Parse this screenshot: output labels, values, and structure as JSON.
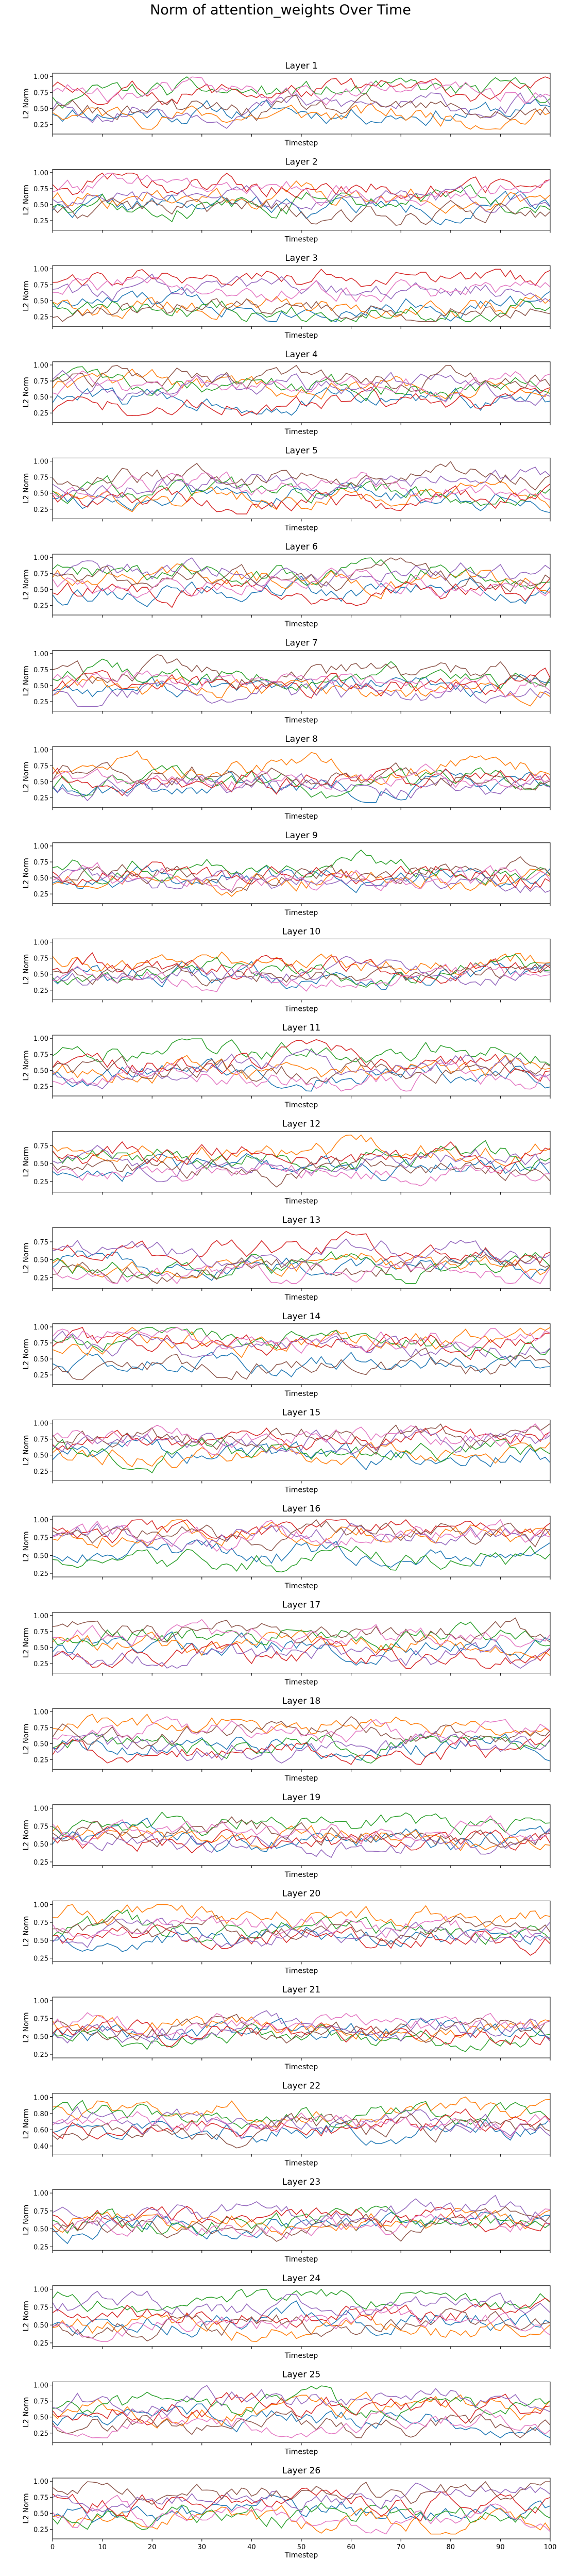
{
  "figure": {
    "title": "Norm of attention_weights Over Time"
  },
  "layout": {
    "common_xlabel": "Timestep",
    "common_ylabel": "L2 Norm",
    "x_ticks": [
      0,
      10,
      20,
      30,
      40,
      50,
      60,
      70,
      80,
      90,
      100
    ],
    "series_colors": [
      "#1f77b4",
      "#ff7f0e",
      "#2ca02c",
      "#d62728",
      "#9467bd",
      "#8c564b",
      "#e377c2"
    ]
  },
  "chart_data": [
    {
      "type": "line",
      "title": "Layer 1",
      "xlabel": "Timestep",
      "ylabel": "L2 Norm",
      "xlim": [
        0,
        100
      ],
      "ylim": [
        0.1,
        1.05
      ],
      "yticks": [
        0.25,
        0.5,
        0.75,
        1.0
      ],
      "seed": 11
    },
    {
      "type": "line",
      "title": "Layer 2",
      "xlabel": "Timestep",
      "ylabel": "L2 Norm",
      "xlim": [
        0,
        100
      ],
      "ylim": [
        0.1,
        1.05
      ],
      "yticks": [
        0.25,
        0.5,
        0.75,
        1.0
      ],
      "seed": 22
    },
    {
      "type": "line",
      "title": "Layer 3",
      "xlabel": "Timestep",
      "ylabel": "L2 Norm",
      "xlim": [
        0,
        100
      ],
      "ylim": [
        0.1,
        1.05
      ],
      "yticks": [
        0.25,
        0.5,
        0.75,
        1.0
      ],
      "seed": 33
    },
    {
      "type": "line",
      "title": "Layer 4",
      "xlabel": "Timestep",
      "ylabel": "L2 Norm",
      "xlim": [
        0,
        100
      ],
      "ylim": [
        0.1,
        1.05
      ],
      "yticks": [
        0.25,
        0.5,
        0.75,
        1.0
      ],
      "seed": 44
    },
    {
      "type": "line",
      "title": "Layer 5",
      "xlabel": "Timestep",
      "ylabel": "L2 Norm",
      "xlim": [
        0,
        100
      ],
      "ylim": [
        0.1,
        1.05
      ],
      "yticks": [
        0.25,
        0.5,
        0.75,
        1.0
      ],
      "seed": 55
    },
    {
      "type": "line",
      "title": "Layer 6",
      "xlabel": "Timestep",
      "ylabel": "L2 Norm",
      "xlim": [
        0,
        100
      ],
      "ylim": [
        0.1,
        1.05
      ],
      "yticks": [
        0.25,
        0.5,
        0.75,
        1.0
      ],
      "seed": 66
    },
    {
      "type": "line",
      "title": "Layer 7",
      "xlabel": "Timestep",
      "ylabel": "L2 Norm",
      "xlim": [
        0,
        100
      ],
      "ylim": [
        0.1,
        1.05
      ],
      "yticks": [
        0.25,
        0.5,
        0.75,
        1.0
      ],
      "seed": 77
    },
    {
      "type": "line",
      "title": "Layer 8",
      "xlabel": "Timestep",
      "ylabel": "L2 Norm",
      "xlim": [
        0,
        100
      ],
      "ylim": [
        0.1,
        1.05
      ],
      "yticks": [
        0.25,
        0.5,
        0.75,
        1.0
      ],
      "seed": 88
    },
    {
      "type": "line",
      "title": "Layer 9",
      "xlabel": "Timestep",
      "ylabel": "L2 Norm",
      "xlim": [
        0,
        100
      ],
      "ylim": [
        0.1,
        1.05
      ],
      "yticks": [
        0.25,
        0.5,
        0.75,
        1.0
      ],
      "seed": 99
    },
    {
      "type": "line",
      "title": "Layer 10",
      "xlabel": "Timestep",
      "ylabel": "L2 Norm",
      "xlim": [
        0,
        100
      ],
      "ylim": [
        0.1,
        1.05
      ],
      "yticks": [
        0.25,
        0.5,
        0.75,
        1.0
      ],
      "seed": 110
    },
    {
      "type": "line",
      "title": "Layer 11",
      "xlabel": "Timestep",
      "ylabel": "L2 Norm",
      "xlim": [
        0,
        100
      ],
      "ylim": [
        0.1,
        1.05
      ],
      "yticks": [
        0.25,
        0.5,
        0.75,
        1.0
      ],
      "seed": 121
    },
    {
      "type": "line",
      "title": "Layer 12",
      "xlabel": "Timestep",
      "ylabel": "L2 Norm",
      "xlim": [
        0,
        100
      ],
      "ylim": [
        0.1,
        0.95
      ],
      "yticks": [
        0.25,
        0.5,
        0.75
      ],
      "seed": 132
    },
    {
      "type": "line",
      "title": "Layer 13",
      "xlabel": "Timestep",
      "ylabel": "L2 Norm",
      "xlim": [
        0,
        100
      ],
      "ylim": [
        0.1,
        0.95
      ],
      "yticks": [
        0.25,
        0.5,
        0.75
      ],
      "seed": 143
    },
    {
      "type": "line",
      "title": "Layer 14",
      "xlabel": "Timestep",
      "ylabel": "L2 Norm",
      "xlim": [
        0,
        100
      ],
      "ylim": [
        0.1,
        1.05
      ],
      "yticks": [
        0.25,
        0.5,
        0.75,
        1.0
      ],
      "seed": 154
    },
    {
      "type": "line",
      "title": "Layer 15",
      "xlabel": "Timestep",
      "ylabel": "L2 Norm",
      "xlim": [
        0,
        100
      ],
      "ylim": [
        0.1,
        1.05
      ],
      "yticks": [
        0.25,
        0.5,
        0.75,
        1.0
      ],
      "seed": 165
    },
    {
      "type": "line",
      "title": "Layer 16",
      "xlabel": "Timestep",
      "ylabel": "L2 Norm",
      "xlim": [
        0,
        100
      ],
      "ylim": [
        0.2,
        1.05
      ],
      "yticks": [
        0.25,
        0.5,
        0.75,
        1.0
      ],
      "seed": 176
    },
    {
      "type": "line",
      "title": "Layer 17",
      "xlabel": "Timestep",
      "ylabel": "L2 Norm",
      "xlim": [
        0,
        100
      ],
      "ylim": [
        0.1,
        1.05
      ],
      "yticks": [
        0.25,
        0.5,
        0.75,
        1.0
      ],
      "seed": 187
    },
    {
      "type": "line",
      "title": "Layer 18",
      "xlabel": "Timestep",
      "ylabel": "L2 Norm",
      "xlim": [
        0,
        100
      ],
      "ylim": [
        0.1,
        1.05
      ],
      "yticks": [
        0.25,
        0.5,
        0.75,
        1.0
      ],
      "seed": 198
    },
    {
      "type": "line",
      "title": "Layer 19",
      "xlabel": "Timestep",
      "ylabel": "L2 Norm",
      "xlim": [
        0,
        100
      ],
      "ylim": [
        0.2,
        1.05
      ],
      "yticks": [
        0.25,
        0.5,
        0.75,
        1.0
      ],
      "seed": 209
    },
    {
      "type": "line",
      "title": "Layer 20",
      "xlabel": "Timestep",
      "ylabel": "L2 Norm",
      "xlim": [
        0,
        100
      ],
      "ylim": [
        0.2,
        1.05
      ],
      "yticks": [
        0.25,
        0.5,
        0.75,
        1.0
      ],
      "seed": 220
    },
    {
      "type": "line",
      "title": "Layer 21",
      "xlabel": "Timestep",
      "ylabel": "L2 Norm",
      "xlim": [
        0,
        100
      ],
      "ylim": [
        0.2,
        1.05
      ],
      "yticks": [
        0.25,
        0.5,
        0.75,
        1.0
      ],
      "seed": 231
    },
    {
      "type": "line",
      "title": "Layer 22",
      "xlabel": "Timestep",
      "ylabel": "L2 Norm",
      "xlim": [
        0,
        100
      ],
      "ylim": [
        0.3,
        1.05
      ],
      "yticks": [
        0.4,
        0.6,
        0.8,
        1.0
      ],
      "seed": 242
    },
    {
      "type": "line",
      "title": "Layer 23",
      "xlabel": "Timestep",
      "ylabel": "L2 Norm",
      "xlim": [
        0,
        100
      ],
      "ylim": [
        0.2,
        1.05
      ],
      "yticks": [
        0.25,
        0.5,
        0.75,
        1.0
      ],
      "seed": 253
    },
    {
      "type": "line",
      "title": "Layer 24",
      "xlabel": "Timestep",
      "ylabel": "L2 Norm",
      "xlim": [
        0,
        100
      ],
      "ylim": [
        0.2,
        1.05
      ],
      "yticks": [
        0.25,
        0.5,
        0.75,
        1.0
      ],
      "seed": 264
    },
    {
      "type": "line",
      "title": "Layer 25",
      "xlabel": "Timestep",
      "ylabel": "L2 Norm",
      "xlim": [
        0,
        100
      ],
      "ylim": [
        0.1,
        1.05
      ],
      "yticks": [
        0.25,
        0.5,
        0.75,
        1.0
      ],
      "seed": 275
    },
    {
      "type": "line",
      "title": "Layer 26",
      "xlabel": "Timestep",
      "ylabel": "L2 Norm",
      "xlim": [
        0,
        100
      ],
      "ylim": [
        0.1,
        1.05
      ],
      "yticks": [
        0.25,
        0.5,
        0.75,
        1.0
      ],
      "seed": 286
    }
  ]
}
